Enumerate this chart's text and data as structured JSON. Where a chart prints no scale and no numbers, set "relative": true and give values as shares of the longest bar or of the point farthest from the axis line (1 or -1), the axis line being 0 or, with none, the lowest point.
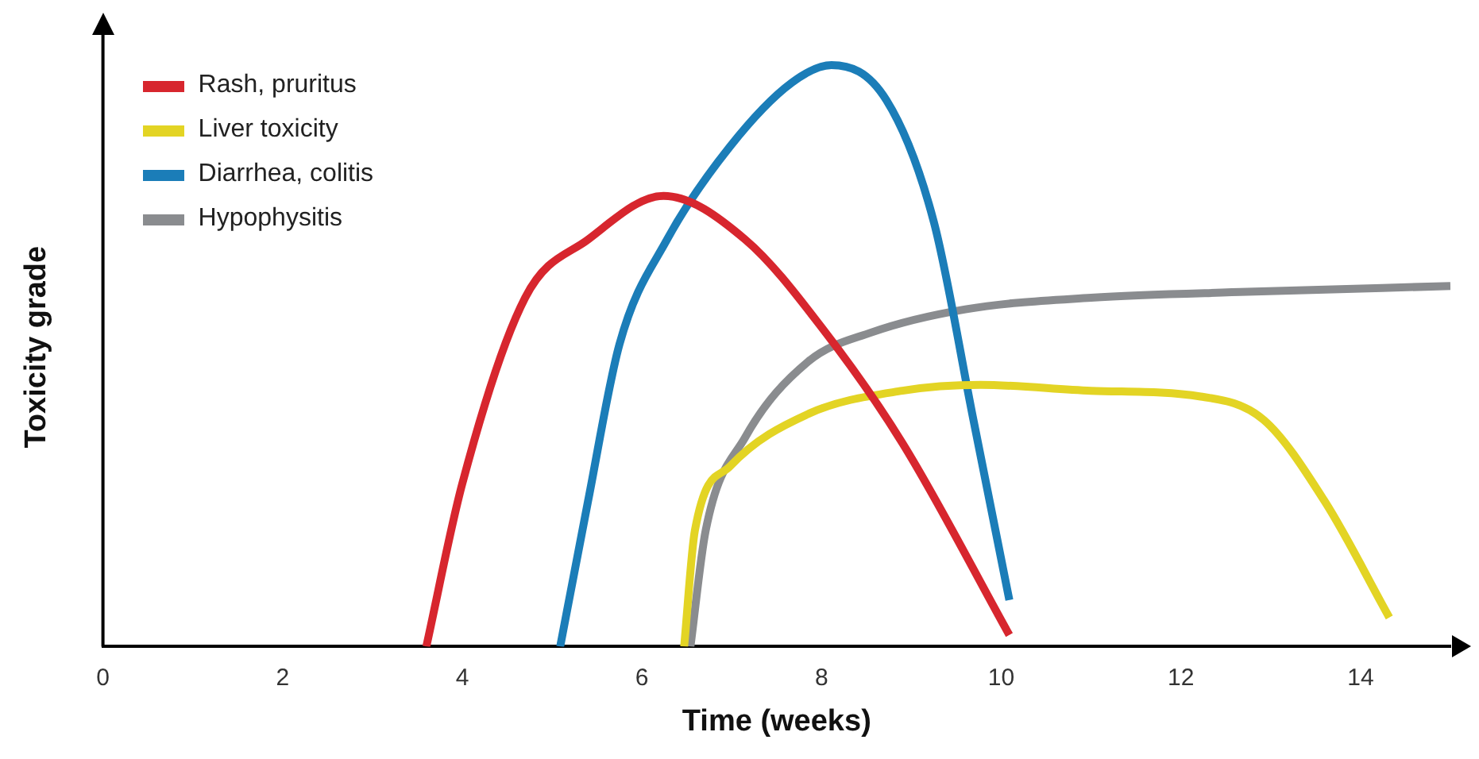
{
  "chart_data": {
    "type": "line",
    "relative": true,
    "xlabel": "Time (weeks)",
    "ylabel": "Toxicity grade",
    "xlim": [
      0,
      15
    ],
    "xticks": [
      0,
      2,
      4,
      6,
      8,
      10,
      12,
      14
    ],
    "grid": false,
    "legend": "top left",
    "marker": "none",
    "line_style": "solid",
    "series": [
      {
        "name": "Rash, pruritus",
        "color": "#d7262e",
        "x": [
          3.6,
          4,
          4.7,
          5.4,
          6.24,
          7.15,
          8.02,
          8.9,
          10.09
        ],
        "values": [
          0,
          0.28,
          0.6,
          0.7,
          0.775,
          0.7,
          0.545,
          0.35,
          0.02
        ]
      },
      {
        "name": "Liver toxicity",
        "color": "#e3d424",
        "x": [
          6.47,
          6.59,
          6.98,
          7.85,
          8.9,
          9.77,
          11,
          12.22,
          12.92,
          13.6,
          14.32
        ],
        "values": [
          0,
          0.2,
          0.31,
          0.4,
          0.44,
          0.45,
          0.44,
          0.43,
          0.39,
          0.25,
          0.05
        ]
      },
      {
        "name": "Diarrhea, colitis",
        "color": "#1b7db8",
        "x": [
          5.09,
          5.4,
          5.75,
          6.28,
          6.98,
          7.67,
          8.11,
          8.72,
          9.25,
          9.69,
          10.09
        ],
        "values": [
          0,
          0.25,
          0.52,
          0.7,
          0.86,
          0.97,
          1,
          0.94,
          0.73,
          0.39,
          0.08
        ]
      },
      {
        "name": "Hypophysitis",
        "color": "#8a8c8f",
        "x": [
          6.54,
          6.71,
          7.15,
          7.85,
          8.55,
          9.6,
          11,
          12.74,
          15
        ],
        "values": [
          0,
          0.2,
          0.36,
          0.49,
          0.54,
          0.58,
          0.6,
          0.61,
          0.62
        ]
      }
    ]
  }
}
